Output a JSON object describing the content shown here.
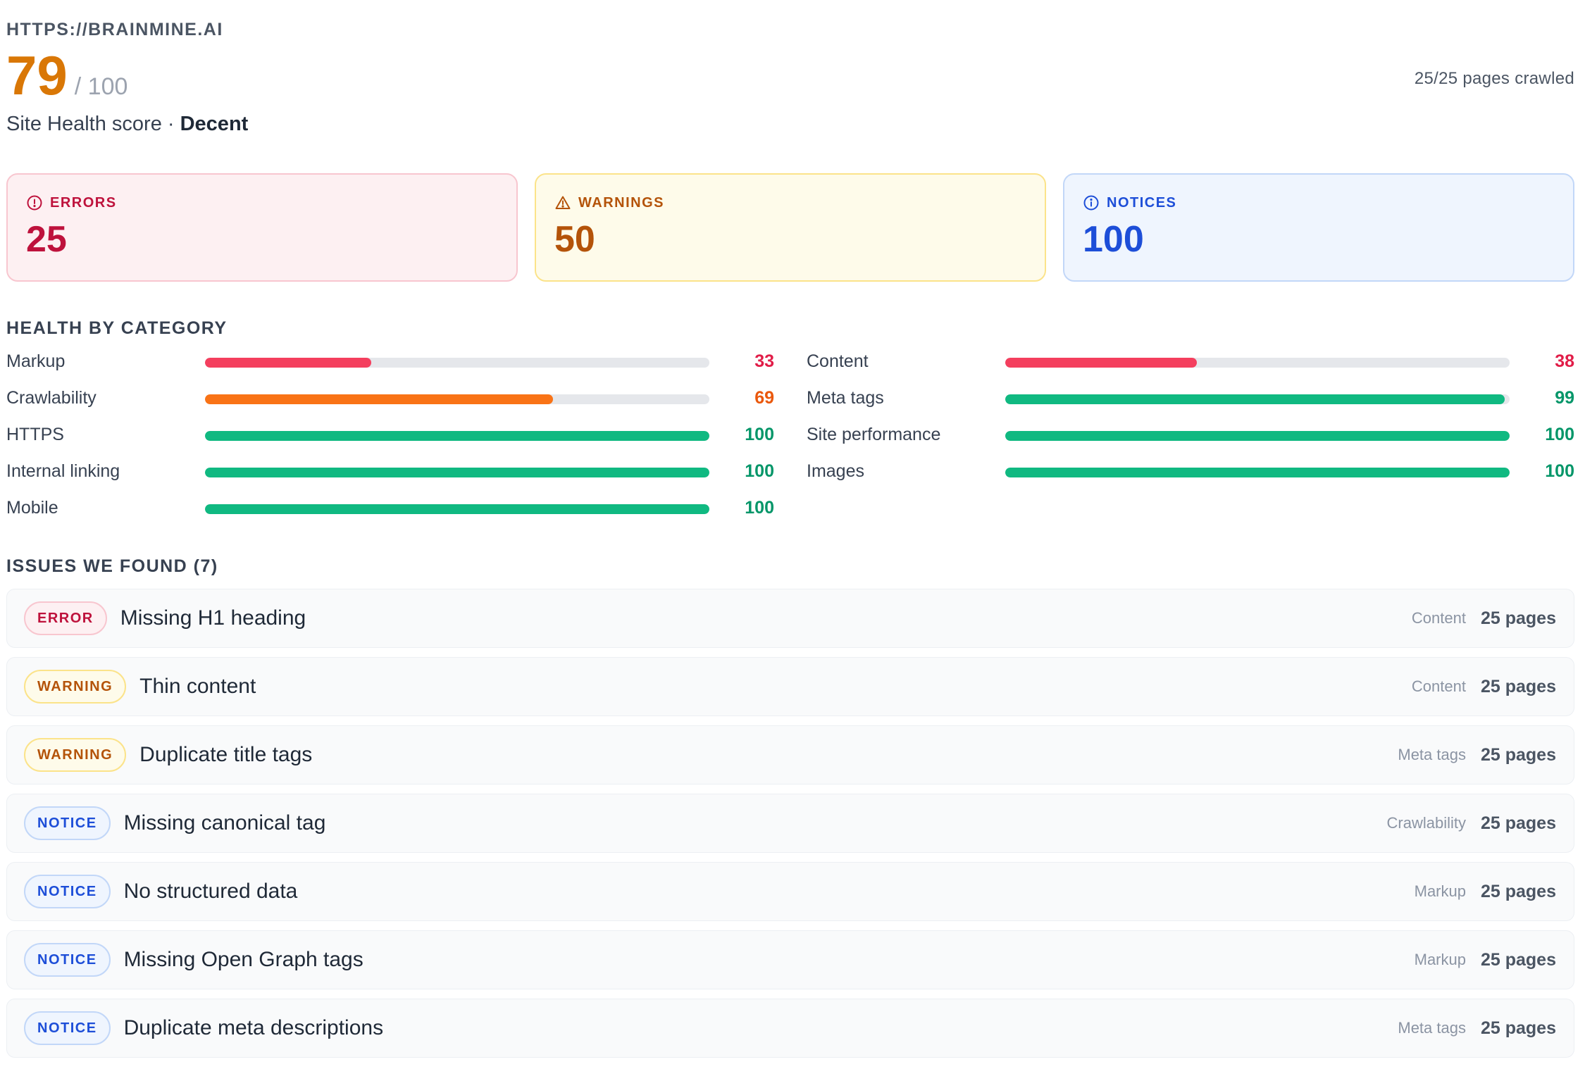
{
  "site": {
    "url": "HTTPS://BRAINMINE.AI",
    "pages_crawled": "25/25 pages crawled"
  },
  "score": {
    "value": "79",
    "max": "/ 100",
    "caption_prefix": "Site Health score · ",
    "rating": "Decent",
    "numeric": 79
  },
  "summary": {
    "errors": {
      "label": "ERRORS",
      "value": "25",
      "icon": "alert-circle-icon"
    },
    "warnings": {
      "label": "WARNINGS",
      "value": "50",
      "icon": "alert-triangle-icon"
    },
    "notices": {
      "label": "NOTICES",
      "value": "100",
      "icon": "info-circle-icon"
    }
  },
  "health": {
    "title": "HEALTH BY CATEGORY",
    "left": [
      {
        "label": "Markup",
        "score": "33",
        "value": 33,
        "color": "#f43f5e"
      },
      {
        "label": "Crawlability",
        "score": "69",
        "value": 69,
        "color": "#f97316"
      },
      {
        "label": "HTTPS",
        "score": "100",
        "value": 100,
        "color": "#10b981"
      },
      {
        "label": "Internal linking",
        "score": "100",
        "value": 100,
        "color": "#10b981"
      },
      {
        "label": "Mobile",
        "score": "100",
        "value": 100,
        "color": "#10b981"
      }
    ],
    "right": [
      {
        "label": "Content",
        "score": "38",
        "value": 38,
        "color": "#f43f5e"
      },
      {
        "label": "Meta tags",
        "score": "99",
        "value": 99,
        "color": "#10b981"
      },
      {
        "label": "Site performance",
        "score": "100",
        "value": 100,
        "color": "#10b981"
      },
      {
        "label": "Images",
        "score": "100",
        "value": 100,
        "color": "#10b981"
      }
    ],
    "score_colors": {
      "red": "#e11d48",
      "orange": "#ea580c",
      "green": "#059669"
    }
  },
  "issues": {
    "title": "ISSUES WE FOUND (7)",
    "items": [
      {
        "severity": "ERROR",
        "kind": "error",
        "title": "Missing H1 heading",
        "category": "Content",
        "pages": "25 pages"
      },
      {
        "severity": "WARNING",
        "kind": "warning",
        "title": "Thin content",
        "category": "Content",
        "pages": "25 pages"
      },
      {
        "severity": "WARNING",
        "kind": "warning",
        "title": "Duplicate title tags",
        "category": "Meta tags",
        "pages": "25 pages"
      },
      {
        "severity": "NOTICE",
        "kind": "notice",
        "title": "Missing canonical tag",
        "category": "Crawlability",
        "pages": "25 pages"
      },
      {
        "severity": "NOTICE",
        "kind": "notice",
        "title": "No structured data",
        "category": "Markup",
        "pages": "25 pages"
      },
      {
        "severity": "NOTICE",
        "kind": "notice",
        "title": "Missing Open Graph tags",
        "category": "Markup",
        "pages": "25 pages"
      },
      {
        "severity": "NOTICE",
        "kind": "notice",
        "title": "Duplicate meta descriptions",
        "category": "Meta tags",
        "pages": "25 pages"
      }
    ]
  }
}
